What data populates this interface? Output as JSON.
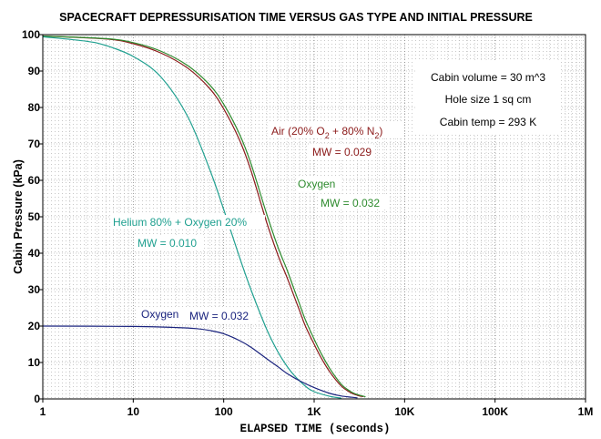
{
  "chart_data": {
    "type": "line",
    "title": "SPACECRAFT DEPRESSURISATION TIME VERSUS GAS TYPE AND INITIAL PRESSURE",
    "xlabel": "ELAPSED TIME (seconds)",
    "ylabel": "Cabin Pressure (kPa)",
    "x_scale": "log",
    "xlim": [
      1,
      1000000
    ],
    "ylim": [
      0,
      100
    ],
    "x_ticks": [
      1,
      10,
      100,
      1000,
      10000,
      100000,
      1000000
    ],
    "x_tick_labels": [
      "1",
      "10",
      "100",
      "1K",
      "10K",
      "100K",
      "1M"
    ],
    "y_ticks": [
      0,
      10,
      20,
      30,
      40,
      50,
      60,
      70,
      80,
      90,
      100
    ],
    "y_tick_labels": [
      "0",
      "10",
      "20",
      "30",
      "40",
      "50",
      "60",
      "70",
      "80",
      "90",
      "100"
    ],
    "grid": true,
    "series": [
      {
        "name": "Air (20% O2 + 80% N2)",
        "color": "#8b1a1a",
        "x": [
          1,
          5,
          10,
          20,
          40,
          70,
          100,
          150,
          200,
          300,
          400,
          500,
          600,
          700,
          800,
          1000,
          1200,
          1500,
          2000,
          2500,
          3000,
          3500
        ],
        "y": [
          99.6,
          98.8,
          97.5,
          95.0,
          90.8,
          85.2,
          79.6,
          71.0,
          62.7,
          48.3,
          39.3,
          33.4,
          28.2,
          23.8,
          20.0,
          15.0,
          11.2,
          7.3,
          3.5,
          1.8,
          1.0,
          0.6
        ]
      },
      {
        "name": "Oxygen",
        "color": "#2e8b2e",
        "x": [
          1,
          5,
          10,
          20,
          40,
          70,
          100,
          150,
          200,
          300,
          400,
          500,
          600,
          700,
          800,
          1000,
          1200,
          1500,
          2000,
          2500,
          3000,
          3700
        ],
        "y": [
          99.6,
          98.9,
          97.8,
          95.5,
          91.5,
          86.2,
          80.9,
          72.6,
          64.6,
          50.6,
          41.5,
          35.5,
          30.1,
          25.6,
          21.7,
          16.4,
          12.4,
          8.2,
          4.0,
          2.1,
          1.2,
          0.6
        ]
      },
      {
        "name": "Helium 80% + Oxygen 20%",
        "color": "#20a090",
        "x": [
          1,
          3,
          5,
          10,
          20,
          40,
          70,
          100,
          150,
          200,
          300,
          400,
          500,
          600,
          800,
          1000,
          1500,
          2000
        ],
        "y": [
          99.4,
          98.2,
          97.0,
          94.0,
          88.5,
          77.5,
          63.0,
          52.0,
          38.8,
          30.0,
          19.0,
          12.8,
          9.0,
          6.5,
          3.5,
          2.0,
          0.7,
          0.2
        ]
      },
      {
        "name": "Oxygen",
        "color": "#1a237e",
        "x": [
          1,
          10,
          30,
          50,
          70,
          100,
          150,
          200,
          300,
          400,
          500,
          700,
          1000,
          1500,
          2000,
          3000
        ],
        "y": [
          20,
          19.9,
          19.6,
          19.3,
          18.8,
          17.9,
          16.0,
          14.2,
          11.0,
          8.8,
          7.0,
          4.9,
          3.1,
          1.5,
          0.8,
          0.3
        ]
      }
    ],
    "annotations": {
      "air": {
        "prefix": "Air (20% O",
        "sub1": "2",
        "middle": " + 80% N",
        "sub2": "2",
        "suffix": ")",
        "mw": "MW = 0.029",
        "color": "#8b1a1a"
      },
      "oxygen_high": {
        "name": "Oxygen",
        "mw": "MW = 0.032",
        "color": "#2e8b2e"
      },
      "helium": {
        "name": "Helium 80% + Oxygen 20%",
        "mw": "MW = 0.010",
        "color": "#20a090"
      },
      "oxygen_low": {
        "name": "Oxygen",
        "mw": "MW = 0.032",
        "color": "#1a237e"
      }
    },
    "info_box": {
      "lines": [
        "Cabin volume = 30 m^3",
        "Hole size  1 sq cm",
        "Cabin temp = 293 K"
      ]
    }
  }
}
